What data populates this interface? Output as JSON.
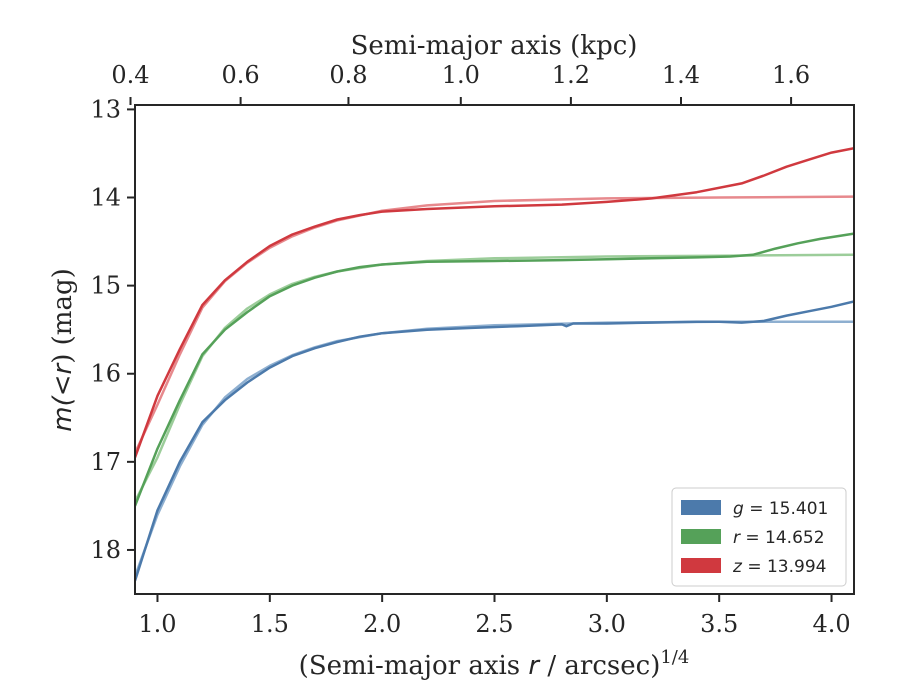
{
  "chart_data": {
    "type": "line",
    "title": "",
    "xlabel_bottom": {
      "pre": "(Semi-major axis ",
      "var": "r",
      "post": " / arcsec)",
      "sup": "1/4"
    },
    "xlabel_top": "Semi-major axis (kpc)",
    "ylabel": {
      "pre": "m(<",
      "var": "r",
      "post": ") (mag)"
    },
    "xlim": [
      0.9,
      4.1
    ],
    "ylim": [
      18.5,
      12.95
    ],
    "y_inverted": true,
    "x_ticks": [
      1.0,
      1.5,
      2.0,
      2.5,
      3.0,
      3.5,
      4.0
    ],
    "x_tick_labels": [
      "1.0",
      "1.5",
      "2.0",
      "2.5",
      "3.0",
      "3.5",
      "4.0"
    ],
    "top_axis_ticks_kpc": [
      0.4,
      0.6,
      0.8,
      1.0,
      1.2,
      1.4,
      1.6
    ],
    "top_axis_tick_labels": [
      "0.4",
      "0.6",
      "0.8",
      "1.0",
      "1.2",
      "1.4",
      "1.6"
    ],
    "top_axis_tick_positions_x": [
      0.88,
      1.37,
      1.85,
      2.35,
      2.84,
      3.33,
      3.82
    ],
    "y_ticks": [
      13,
      14,
      15,
      16,
      17,
      18
    ],
    "y_tick_labels": [
      "13",
      "14",
      "15",
      "16",
      "17",
      "18"
    ],
    "grid": false,
    "legend": {
      "placement": "bottom-right"
    },
    "series": [
      {
        "name": "g = 15.401",
        "label_var": "g",
        "label_value": "15.401",
        "color": "#4c7aab",
        "model_color": "#8eafd0",
        "data": {
          "x": [
            0.9,
            1.0,
            1.1,
            1.2,
            1.3,
            1.4,
            1.5,
            1.6,
            1.7,
            1.8,
            1.9,
            2.0,
            2.2,
            2.4,
            2.6,
            2.8,
            2.82,
            2.85,
            3.0,
            3.2,
            3.4,
            3.5,
            3.6,
            3.7,
            3.8,
            3.9,
            4.0,
            4.1
          ],
          "y": [
            18.35,
            17.55,
            17.0,
            16.55,
            16.3,
            16.1,
            15.93,
            15.8,
            15.71,
            15.64,
            15.58,
            15.54,
            15.5,
            15.48,
            15.46,
            15.44,
            15.46,
            15.43,
            15.43,
            15.42,
            15.41,
            15.41,
            15.42,
            15.4,
            15.34,
            15.29,
            15.24,
            15.18
          ]
        },
        "model": {
          "x": [
            0.9,
            1.0,
            1.1,
            1.2,
            1.3,
            1.4,
            1.5,
            1.6,
            1.7,
            1.8,
            2.0,
            2.2,
            2.5,
            3.0,
            3.5,
            4.1
          ],
          "y": [
            18.3,
            17.6,
            17.05,
            16.58,
            16.27,
            16.06,
            15.91,
            15.79,
            15.7,
            15.63,
            15.54,
            15.49,
            15.45,
            15.42,
            15.41,
            15.41
          ]
        }
      },
      {
        "name": "r = 14.652",
        "label_var": "r",
        "label_value": "14.652",
        "color": "#55a159",
        "model_color": "#9ccd9a",
        "data": {
          "x": [
            0.9,
            1.0,
            1.1,
            1.2,
            1.3,
            1.4,
            1.5,
            1.6,
            1.7,
            1.8,
            1.9,
            2.0,
            2.2,
            2.5,
            2.8,
            3.0,
            3.2,
            3.4,
            3.55,
            3.65,
            3.75,
            3.85,
            3.95,
            4.05,
            4.1
          ],
          "y": [
            17.5,
            16.85,
            16.3,
            15.78,
            15.5,
            15.3,
            15.12,
            15.0,
            14.91,
            14.84,
            14.79,
            14.76,
            14.73,
            14.72,
            14.71,
            14.7,
            14.69,
            14.68,
            14.67,
            14.65,
            14.58,
            14.52,
            14.47,
            14.43,
            14.41
          ]
        },
        "model": {
          "x": [
            0.9,
            1.0,
            1.1,
            1.2,
            1.3,
            1.4,
            1.5,
            1.6,
            1.7,
            1.8,
            2.0,
            2.2,
            2.5,
            3.0,
            3.5,
            4.1
          ],
          "y": [
            17.45,
            16.95,
            16.35,
            15.8,
            15.48,
            15.26,
            15.1,
            14.98,
            14.9,
            14.84,
            14.76,
            14.72,
            14.69,
            14.67,
            14.66,
            14.65
          ]
        }
      },
      {
        "name": "z = 13.994",
        "label_var": "z",
        "label_value": "13.994",
        "color": "#d0393f",
        "model_color": "#e7898d",
        "data": {
          "x": [
            0.9,
            1.0,
            1.1,
            1.2,
            1.3,
            1.4,
            1.5,
            1.6,
            1.7,
            1.8,
            1.9,
            2.0,
            2.2,
            2.5,
            2.8,
            3.0,
            3.2,
            3.4,
            3.6,
            3.7,
            3.8,
            3.9,
            4.0,
            4.1
          ],
          "y": [
            16.95,
            16.25,
            15.72,
            15.22,
            14.94,
            14.73,
            14.55,
            14.42,
            14.33,
            14.25,
            14.2,
            14.16,
            14.13,
            14.1,
            14.08,
            14.05,
            14.01,
            13.94,
            13.84,
            13.75,
            13.65,
            13.57,
            13.49,
            13.44
          ]
        },
        "model": {
          "x": [
            0.9,
            1.0,
            1.1,
            1.2,
            1.3,
            1.4,
            1.5,
            1.6,
            1.7,
            1.8,
            2.0,
            2.2,
            2.5,
            3.0,
            3.5,
            4.1
          ],
          "y": [
            16.9,
            16.35,
            15.78,
            15.25,
            14.95,
            14.74,
            14.57,
            14.44,
            14.34,
            14.26,
            14.15,
            14.09,
            14.04,
            14.01,
            14.0,
            13.99
          ]
        }
      }
    ]
  }
}
